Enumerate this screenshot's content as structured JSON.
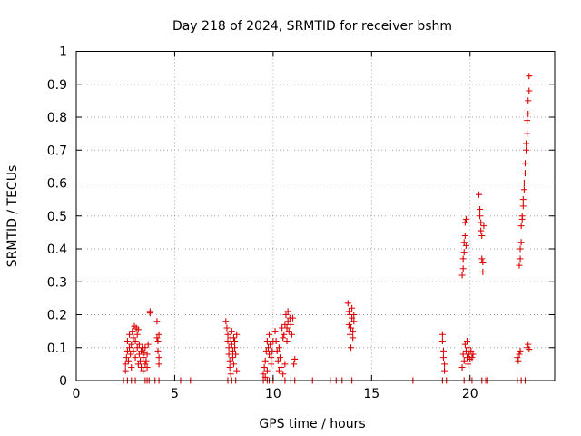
{
  "chart_data": {
    "type": "scatter",
    "title": "Day 218 of 2024, SRMTID for receiver bshm",
    "xlabel": "GPS time / hours",
    "ylabel": "SRMTID / TECUs",
    "xlim": [
      0,
      24.3
    ],
    "ylim": [
      0,
      1
    ],
    "xticks": [
      0,
      5,
      10,
      15,
      20
    ],
    "xtick_labels": [
      "0",
      "5",
      "10",
      "15",
      "20"
    ],
    "yticks": [
      0,
      0.1,
      0.2,
      0.3,
      0.4,
      0.5,
      0.6,
      0.7,
      0.8,
      0.9,
      1
    ],
    "ytick_labels": [
      "0",
      "0.1",
      "0.2",
      "0.3",
      "0.4",
      "0.5",
      "0.6",
      "0.7",
      "0.8",
      "0.9",
      "1"
    ],
    "grid": true,
    "marker": "+",
    "marker_color": "#dd0000",
    "series": [
      {
        "name": "SRMTID",
        "points": [
          [
            2.4,
            0.0
          ],
          [
            2.5,
            0.03
          ],
          [
            2.5,
            0.05
          ],
          [
            2.55,
            0.07
          ],
          [
            2.6,
            0.09
          ],
          [
            2.6,
            0.12
          ],
          [
            2.65,
            0.06
          ],
          [
            2.7,
            0.1
          ],
          [
            2.7,
            0.14
          ],
          [
            2.75,
            0.08
          ],
          [
            2.8,
            0.11
          ],
          [
            2.8,
            0.04
          ],
          [
            2.85,
            0.15
          ],
          [
            2.9,
            0.13
          ],
          [
            2.9,
            0.09
          ],
          [
            2.95,
            0.165
          ],
          [
            3.0,
            0.12
          ],
          [
            3.0,
            0.07
          ],
          [
            3.05,
            0.16
          ],
          [
            3.1,
            0.14
          ],
          [
            3.1,
            0.1
          ],
          [
            3.15,
            0.155
          ],
          [
            3.15,
            0.05
          ],
          [
            3.2,
            0.11
          ],
          [
            3.2,
            0.08
          ],
          [
            2.6,
            0.0
          ],
          [
            2.8,
            0.0
          ],
          [
            3.0,
            0.0
          ],
          [
            3.25,
            0.06
          ],
          [
            3.3,
            0.09
          ],
          [
            3.3,
            0.04
          ],
          [
            3.35,
            0.1
          ],
          [
            3.4,
            0.07
          ],
          [
            3.4,
            0.03
          ],
          [
            3.45,
            0.085
          ],
          [
            3.5,
            0.05
          ],
          [
            3.5,
            0.1
          ],
          [
            3.55,
            0.06
          ],
          [
            3.6,
            0.08
          ],
          [
            3.6,
            0.04
          ],
          [
            3.65,
            0.11
          ],
          [
            3.5,
            0.0
          ],
          [
            3.6,
            0.0
          ],
          [
            3.7,
            0.0
          ],
          [
            3.75,
            0.21
          ],
          [
            3.75,
            0.205
          ],
          [
            4.1,
            0.18
          ],
          [
            4.1,
            0.13
          ],
          [
            4.15,
            0.12
          ],
          [
            4.15,
            0.09
          ],
          [
            4.2,
            0.07
          ],
          [
            4.2,
            0.05
          ],
          [
            4.2,
            0.14
          ],
          [
            4.0,
            0.0
          ],
          [
            4.2,
            0.0
          ],
          [
            5.3,
            0.0
          ],
          [
            5.8,
            0.0
          ],
          [
            7.6,
            0.18
          ],
          [
            7.65,
            0.16
          ],
          [
            7.7,
            0.14
          ],
          [
            7.7,
            0.12
          ],
          [
            7.75,
            0.1
          ],
          [
            7.75,
            0.08
          ],
          [
            7.8,
            0.06
          ],
          [
            7.8,
            0.04
          ],
          [
            7.85,
            0.13
          ],
          [
            7.85,
            0.02
          ],
          [
            7.9,
            0.15
          ],
          [
            7.9,
            0.11
          ],
          [
            7.95,
            0.09
          ],
          [
            7.95,
            0.07
          ],
          [
            8.0,
            0.13
          ],
          [
            8.0,
            0.05
          ],
          [
            8.05,
            0.12
          ],
          [
            8.05,
            0.1
          ],
          [
            8.1,
            0.08
          ],
          [
            8.15,
            0.14
          ],
          [
            8.15,
            0.03
          ],
          [
            7.7,
            0.0
          ],
          [
            7.9,
            0.0
          ],
          [
            8.1,
            0.0
          ],
          [
            9.5,
            0.02
          ],
          [
            9.55,
            0.04
          ],
          [
            9.6,
            0.01
          ],
          [
            9.6,
            0.06
          ],
          [
            9.65,
            0.09
          ],
          [
            9.7,
            0.12
          ],
          [
            9.7,
            0.03
          ],
          [
            9.75,
            0.1
          ],
          [
            9.8,
            0.08
          ],
          [
            9.8,
            0.14
          ],
          [
            9.85,
            0.11
          ],
          [
            9.9,
            0.05
          ],
          [
            9.9,
            0.07
          ],
          [
            9.95,
            0.09
          ],
          [
            10.0,
            0.12
          ],
          [
            9.5,
            0.0
          ],
          [
            9.7,
            0.0
          ],
          [
            9.8,
            0.0
          ],
          [
            10.0,
            0.0
          ],
          [
            10.1,
            0.15
          ],
          [
            10.15,
            0.12
          ],
          [
            10.2,
            0.09
          ],
          [
            10.25,
            0.06
          ],
          [
            10.3,
            0.03
          ],
          [
            10.3,
            0.1
          ],
          [
            10.35,
            0.07
          ],
          [
            10.4,
            0.04
          ],
          [
            10.45,
            0.16
          ],
          [
            10.5,
            0.02
          ],
          [
            10.5,
            0.13
          ],
          [
            10.55,
            0.14
          ],
          [
            10.6,
            0.17
          ],
          [
            10.6,
            0.05
          ],
          [
            10.65,
            0.2
          ],
          [
            10.7,
            0.16
          ],
          [
            10.7,
            0.12
          ],
          [
            10.75,
            0.18
          ],
          [
            10.75,
            0.21
          ],
          [
            10.8,
            0.15
          ],
          [
            10.85,
            0.19
          ],
          [
            10.9,
            0.17
          ],
          [
            10.95,
            0.14
          ],
          [
            11.0,
            0.19
          ],
          [
            11.05,
            0.05
          ],
          [
            11.1,
            0.065
          ],
          [
            10.4,
            0.0
          ],
          [
            10.6,
            0.0
          ],
          [
            10.9,
            0.0
          ],
          [
            11.1,
            0.0
          ],
          [
            12.0,
            0.0
          ],
          [
            12.9,
            0.0
          ],
          [
            13.2,
            0.0
          ],
          [
            13.5,
            0.0
          ],
          [
            13.8,
            0.235
          ],
          [
            13.85,
            0.21
          ],
          [
            13.85,
            0.17
          ],
          [
            13.9,
            0.2
          ],
          [
            13.9,
            0.14
          ],
          [
            13.95,
            0.1
          ],
          [
            13.95,
            0.16
          ],
          [
            14.0,
            0.22
          ],
          [
            14.0,
            0.19
          ],
          [
            14.05,
            0.15
          ],
          [
            14.05,
            0.13
          ],
          [
            14.1,
            0.2
          ],
          [
            14.1,
            0.18
          ],
          [
            14.0,
            0.0
          ],
          [
            17.1,
            0.0
          ],
          [
            18.6,
            0.14
          ],
          [
            18.6,
            0.12
          ],
          [
            18.65,
            0.09
          ],
          [
            18.65,
            0.07
          ],
          [
            18.7,
            0.05
          ],
          [
            18.7,
            0.03
          ],
          [
            18.6,
            0.0
          ],
          [
            18.8,
            0.0
          ],
          [
            19.6,
            0.32
          ],
          [
            19.65,
            0.34
          ],
          [
            19.65,
            0.37
          ],
          [
            19.7,
            0.39
          ],
          [
            19.7,
            0.42
          ],
          [
            19.75,
            0.44
          ],
          [
            19.75,
            0.48
          ],
          [
            19.8,
            0.49
          ],
          [
            19.8,
            0.41
          ],
          [
            19.6,
            0.04
          ],
          [
            19.65,
            0.08
          ],
          [
            19.7,
            0.06
          ],
          [
            19.75,
            0.11
          ],
          [
            19.8,
            0.09
          ],
          [
            19.85,
            0.12
          ],
          [
            19.85,
            0.07
          ],
          [
            19.9,
            0.1
          ],
          [
            19.9,
            0.05
          ],
          [
            19.95,
            0.08
          ],
          [
            20.0,
            0.065
          ],
          [
            20.05,
            0.09
          ],
          [
            20.1,
            0.07
          ],
          [
            20.15,
            0.08
          ],
          [
            19.7,
            0.0
          ],
          [
            19.9,
            0.0
          ],
          [
            20.1,
            0.0
          ],
          [
            20.45,
            0.565
          ],
          [
            20.5,
            0.52
          ],
          [
            20.5,
            0.5
          ],
          [
            20.55,
            0.48
          ],
          [
            20.55,
            0.455
          ],
          [
            20.6,
            0.44
          ],
          [
            20.6,
            0.37
          ],
          [
            20.65,
            0.36
          ],
          [
            20.65,
            0.33
          ],
          [
            20.7,
            0.47
          ],
          [
            20.6,
            0.0
          ],
          [
            20.8,
            0.0
          ],
          [
            20.9,
            0.0
          ],
          [
            22.4,
            0.07
          ],
          [
            22.45,
            0.06
          ],
          [
            22.5,
            0.08
          ],
          [
            22.55,
            0.09
          ],
          [
            22.5,
            0.35
          ],
          [
            22.55,
            0.37
          ],
          [
            22.55,
            0.4
          ],
          [
            22.6,
            0.42
          ],
          [
            22.6,
            0.47
          ],
          [
            22.65,
            0.49
          ],
          [
            22.65,
            0.5
          ],
          [
            22.7,
            0.53
          ],
          [
            22.7,
            0.55
          ],
          [
            22.75,
            0.58
          ],
          [
            22.75,
            0.6
          ],
          [
            22.8,
            0.63
          ],
          [
            22.8,
            0.66
          ],
          [
            22.85,
            0.7
          ],
          [
            22.85,
            0.72
          ],
          [
            22.9,
            0.75
          ],
          [
            22.9,
            0.79
          ],
          [
            22.95,
            0.81
          ],
          [
            22.95,
            0.85
          ],
          [
            23.0,
            0.88
          ],
          [
            23.0,
            0.925
          ],
          [
            22.9,
            0.1
          ],
          [
            22.95,
            0.11
          ],
          [
            23.0,
            0.095
          ],
          [
            22.4,
            0.0
          ],
          [
            22.6,
            0.0
          ],
          [
            22.8,
            0.0
          ]
        ]
      }
    ]
  }
}
